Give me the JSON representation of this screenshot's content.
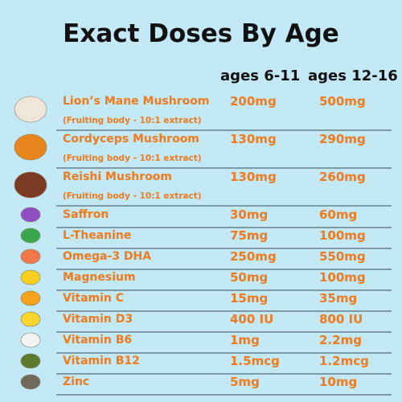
{
  "header": {
    "title": "Exact Doses By Age",
    "columns": [
      "ages 6-11",
      "ages 12-16"
    ]
  },
  "table": {
    "rows": [
      {
        "name": "Lion’s Mane Mushroom",
        "note": "(Fruiting body - 10:1 extract)",
        "doses": [
          "200mg",
          "500mg"
        ]
      },
      {
        "name": "Cordyceps Mushroom",
        "note": "(Fruiting body - 10:1 extract)",
        "doses": [
          "130mg",
          "290mg"
        ]
      },
      {
        "name": "Reishi Mushroom",
        "note": "(Fruiting body - 10:1 extract)",
        "doses": [
          "130mg",
          "260mg"
        ]
      },
      {
        "name": "Saffron",
        "doses": [
          "30mg",
          "60mg"
        ]
      },
      {
        "name": "L-Theanine",
        "doses": [
          "75mg",
          "100mg"
        ]
      },
      {
        "name": "Omega-3 DHA",
        "doses": [
          "250mg",
          "550mg"
        ]
      },
      {
        "name": "Magnesium",
        "doses": [
          "50mg",
          "100mg"
        ]
      },
      {
        "name": "Vitamin C",
        "doses": [
          "15mg",
          "35mg"
        ]
      },
      {
        "name": "Vitamin D3",
        "doses": [
          "400 IU",
          "800 IU"
        ]
      },
      {
        "name": "Vitamin B6",
        "doses": [
          "1mg",
          "2.2mg"
        ]
      },
      {
        "name": "Vitamin B12",
        "doses": [
          "1.5mcg",
          "1.2mcg"
        ]
      },
      {
        "name": "Zinc",
        "doses": [
          "5mg",
          "10mg"
        ]
      }
    ]
  }
}
